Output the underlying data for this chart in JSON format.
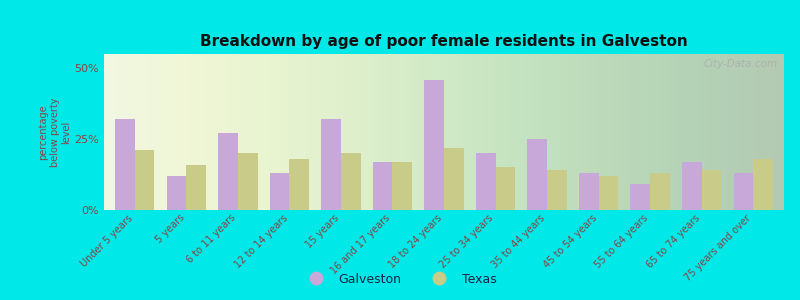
{
  "title": "Breakdown by age of poor female residents in Galveston",
  "categories": [
    "Under 5 years",
    "5 years",
    "6 to 11 years",
    "12 to 14 years",
    "15 years",
    "16 and 17 years",
    "18 to 24 years",
    "25 to 34 years",
    "35 to 44 years",
    "45 to 54 years",
    "55 to 64 years",
    "65 to 74 years",
    "75 years and over"
  ],
  "galveston": [
    32,
    12,
    27,
    13,
    32,
    17,
    46,
    20,
    25,
    13,
    9,
    17,
    13
  ],
  "texas": [
    21,
    16,
    20,
    18,
    20,
    17,
    22,
    15,
    14,
    12,
    13,
    14,
    18
  ],
  "galveston_color": "#c8a8d8",
  "texas_color": "#c8cc88",
  "background_plot": "#eef5e0",
  "background_fig": "#00e8e8",
  "ylabel": "percentage\nbelow poverty\nlevel",
  "yticks": [
    0,
    25,
    50
  ],
  "ytick_labels": [
    "0%",
    "25%",
    "50%"
  ],
  "ylim": [
    0,
    55
  ],
  "title_color": "#111111",
  "axis_label_color": "#884444",
  "tick_label_color": "#884444",
  "legend_text_color": "#222244",
  "watermark": "City-Data.com",
  "bar_width": 0.38
}
